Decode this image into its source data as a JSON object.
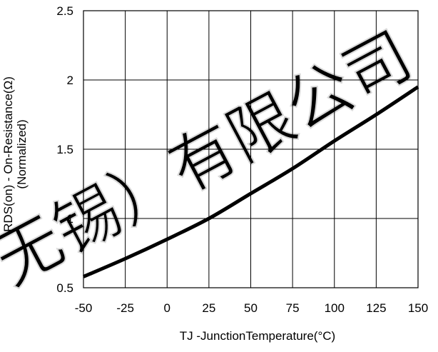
{
  "watermark": {
    "text": "无锡）有限公司",
    "color": "#d8d8d8"
  },
  "chart_data": {
    "type": "line",
    "title": "",
    "xlabel": "TJ -JunctionTemperature(°C)",
    "ylabel_lines": [
      "RDS(on) - On-Resistance(Ω)",
      "(Normalized)"
    ],
    "xlim": [
      -50,
      150
    ],
    "ylim": [
      0.5,
      2.5
    ],
    "x_ticks": [
      "-50",
      "-25",
      "0",
      "25",
      "50",
      "75",
      "100",
      "125",
      "150"
    ],
    "y_ticks": [
      "0.5",
      "1",
      "1.5",
      "2",
      "2.5"
    ],
    "grid": true,
    "legend": "none",
    "line_color": "#000000",
    "series": [
      {
        "x": [
          -50,
          -25,
          0,
          25,
          50,
          75,
          100,
          125,
          150
        ],
        "y": [
          0.58,
          0.71,
          0.85,
          1.0,
          1.18,
          1.36,
          1.56,
          1.75,
          1.95
        ]
      }
    ]
  }
}
